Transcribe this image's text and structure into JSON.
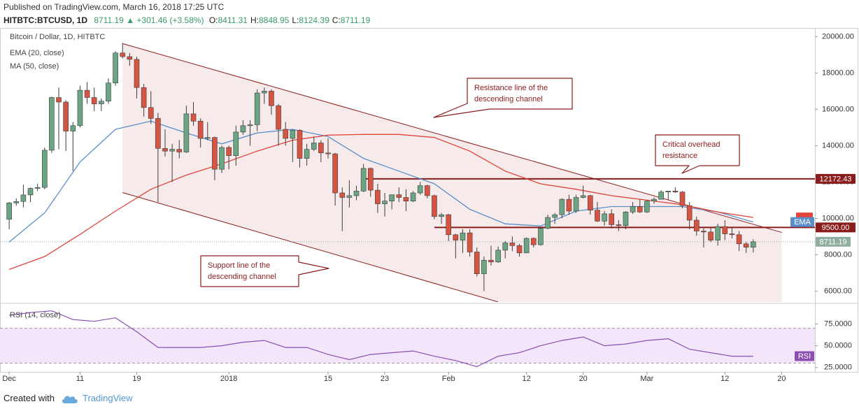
{
  "header": {
    "published": "Published on TradingView.com, March 16, 2018 17:25 UTC",
    "symbol": "HITBTC:BTCUSD, 1D",
    "last": "8711.19",
    "change": "▲ +301.46 (+3.58%)",
    "ohlc": [
      {
        "label": "O:",
        "value": "8411.31"
      },
      {
        "label": "H:",
        "value": "8848.95"
      },
      {
        "label": "L:",
        "value": "8124.39"
      },
      {
        "label": "C:",
        "value": "8711.19"
      }
    ]
  },
  "chart_data": [
    {
      "type": "candlestick",
      "title": "Bitcoin / Dollar, 1D, HITBTC",
      "up_color": "#6ba583",
      "down_color": "#d75442",
      "wick_color": "#3d3d3d",
      "x": [
        "2017-12-01",
        "2017-12-02",
        "2017-12-03",
        "2017-12-04",
        "2017-12-05",
        "2017-12-06",
        "2017-12-07",
        "2017-12-08",
        "2017-12-09",
        "2017-12-10",
        "2017-12-11",
        "2017-12-12",
        "2017-12-13",
        "2017-12-14",
        "2017-12-15",
        "2017-12-16",
        "2017-12-17",
        "2017-12-18",
        "2017-12-19",
        "2017-12-20",
        "2017-12-21",
        "2017-12-22",
        "2017-12-23",
        "2017-12-24",
        "2017-12-25",
        "2017-12-26",
        "2017-12-27",
        "2017-12-28",
        "2017-12-29",
        "2017-12-30",
        "2017-12-31",
        "2018-01-01",
        "2018-01-02",
        "2018-01-03",
        "2018-01-04",
        "2018-01-05",
        "2018-01-06",
        "2018-01-07",
        "2018-01-08",
        "2018-01-09",
        "2018-01-10",
        "2018-01-11",
        "2018-01-12",
        "2018-01-13",
        "2018-01-14",
        "2018-01-15",
        "2018-01-16",
        "2018-01-17",
        "2018-01-18",
        "2018-01-19",
        "2018-01-20",
        "2018-01-21",
        "2018-01-22",
        "2018-01-23",
        "2018-01-24",
        "2018-01-25",
        "2018-01-26",
        "2018-01-27",
        "2018-01-28",
        "2018-01-29",
        "2018-01-30",
        "2018-01-31",
        "2018-02-01",
        "2018-02-02",
        "2018-02-03",
        "2018-02-04",
        "2018-02-05",
        "2018-02-06",
        "2018-02-07",
        "2018-02-08",
        "2018-02-09",
        "2018-02-10",
        "2018-02-11",
        "2018-02-12",
        "2018-02-13",
        "2018-02-14",
        "2018-02-15",
        "2018-02-16",
        "2018-02-17",
        "2018-02-18",
        "2018-02-19",
        "2018-02-20",
        "2018-02-21",
        "2018-02-22",
        "2018-02-23",
        "2018-02-24",
        "2018-02-25",
        "2018-02-26",
        "2018-02-27",
        "2018-02-28",
        "2018-03-01",
        "2018-03-02",
        "2018-03-03",
        "2018-03-04",
        "2018-03-05",
        "2018-03-06",
        "2018-03-07",
        "2018-03-08",
        "2018-03-09",
        "2018-03-10",
        "2018-03-11",
        "2018-03-12",
        "2018-03-13",
        "2018-03-14",
        "2018-03-15",
        "2018-03-16"
      ],
      "ohlc": [
        [
          9950,
          10900,
          9400,
          10850
        ],
        [
          10850,
          11100,
          10700,
          10930
        ],
        [
          10930,
          11850,
          10600,
          11290
        ],
        [
          11290,
          11700,
          10900,
          11650
        ],
        [
          11650,
          11900,
          11500,
          11700
        ],
        [
          11700,
          13900,
          11600,
          13750
        ],
        [
          13750,
          16700,
          13600,
          16650
        ],
        [
          16650,
          17200,
          13800,
          16400
        ],
        [
          16400,
          16500,
          13700,
          14800
        ],
        [
          14800,
          15300,
          12600,
          15100
        ],
        [
          15100,
          17300,
          15000,
          17050
        ],
        [
          17050,
          17500,
          16300,
          16650
        ],
        [
          16650,
          17200,
          15900,
          16300
        ],
        [
          16300,
          16600,
          15900,
          16450
        ],
        [
          16450,
          17700,
          16300,
          17450
        ],
        [
          17450,
          19200,
          17300,
          19100
        ],
        [
          19100,
          19650,
          18800,
          18900
        ],
        [
          18900,
          19100,
          18400,
          18750
        ],
        [
          18750,
          18900,
          16600,
          17200
        ],
        [
          17200,
          17400,
          15600,
          16100
        ],
        [
          16100,
          17000,
          15200,
          15500
        ],
        [
          15500,
          15800,
          10900,
          13850
        ],
        [
          13850,
          14900,
          13400,
          13700
        ],
        [
          13700,
          14100,
          12000,
          13800
        ],
        [
          13800,
          14300,
          13300,
          13650
        ],
        [
          13650,
          16200,
          13600,
          15750
        ],
        [
          15750,
          16400,
          15100,
          15350
        ],
        [
          15350,
          15500,
          13900,
          14400
        ],
        [
          14400,
          15300,
          14300,
          14450
        ],
        [
          14450,
          14500,
          12100,
          12700
        ],
        [
          12700,
          14000,
          12500,
          13900
        ],
        [
          13900,
          14000,
          12700,
          13450
        ],
        [
          13450,
          15100,
          12900,
          14750
        ],
        [
          14750,
          15400,
          14600,
          15100
        ],
        [
          15100,
          15400,
          14000,
          15150
        ],
        [
          15150,
          17100,
          14800,
          16900
        ],
        [
          16900,
          17200,
          16300,
          17000
        ],
        [
          17000,
          17100,
          15700,
          16200
        ],
        [
          16200,
          16300,
          14000,
          14900
        ],
        [
          14900,
          15300,
          14000,
          14400
        ],
        [
          14400,
          14900,
          13100,
          14850
        ],
        [
          14850,
          14900,
          12800,
          13300
        ],
        [
          13300,
          14100,
          12900,
          13800
        ],
        [
          13800,
          14500,
          13700,
          14150
        ],
        [
          14150,
          14300,
          13100,
          13600
        ],
        [
          13600,
          14400,
          13300,
          13550
        ],
        [
          13550,
          13600,
          10700,
          11400
        ],
        [
          11400,
          11700,
          9300,
          11150
        ],
        [
          11150,
          12100,
          10600,
          11250
        ],
        [
          11250,
          11800,
          11000,
          11500
        ],
        [
          11500,
          13000,
          11450,
          12750
        ],
        [
          12750,
          12800,
          11200,
          11550
        ],
        [
          11550,
          11900,
          10300,
          10800
        ],
        [
          10800,
          11400,
          10100,
          10950
        ],
        [
          10950,
          11300,
          10500,
          11300
        ],
        [
          11300,
          11700,
          10900,
          11150
        ],
        [
          11150,
          11600,
          10400,
          10950
        ],
        [
          10950,
          11500,
          10900,
          11400
        ],
        [
          11400,
          12000,
          11300,
          11800
        ],
        [
          11800,
          11850,
          11100,
          11250
        ],
        [
          11250,
          11300,
          9950,
          10100
        ],
        [
          10100,
          10300,
          9700,
          10200
        ],
        [
          10200,
          10250,
          8750,
          9100
        ],
        [
          9100,
          9150,
          7800,
          8800
        ],
        [
          8800,
          9400,
          8100,
          9200
        ],
        [
          9200,
          9400,
          7900,
          8150
        ],
        [
          8150,
          8400,
          6800,
          6950
        ],
        [
          6950,
          7900,
          6000,
          7700
        ],
        [
          7700,
          8500,
          7400,
          7600
        ],
        [
          7600,
          8450,
          7550,
          8250
        ],
        [
          8250,
          8750,
          7800,
          8650
        ],
        [
          8650,
          9000,
          8200,
          8500
        ],
        [
          8500,
          8600,
          7900,
          8100
        ],
        [
          8100,
          8950,
          8100,
          8900
        ],
        [
          8900,
          8950,
          8400,
          8550
        ],
        [
          8550,
          9500,
          8500,
          9450
        ],
        [
          9450,
          10200,
          9400,
          10050
        ],
        [
          10050,
          10300,
          9700,
          10200
        ],
        [
          10200,
          11100,
          10000,
          11050
        ],
        [
          11050,
          11300,
          10200,
          10400
        ],
        [
          10400,
          11300,
          10300,
          11150
        ],
        [
          11150,
          11800,
          11100,
          11250
        ],
        [
          11250,
          11300,
          10200,
          10450
        ],
        [
          10450,
          10900,
          9800,
          9850
        ],
        [
          9850,
          10400,
          9600,
          10250
        ],
        [
          10250,
          10500,
          9450,
          9650
        ],
        [
          9650,
          9900,
          9300,
          9600
        ],
        [
          9600,
          10400,
          9400,
          10350
        ],
        [
          10350,
          10900,
          10250,
          10650
        ],
        [
          10650,
          11050,
          10300,
          10350
        ],
        [
          10350,
          11000,
          10300,
          10950
        ],
        [
          10950,
          11150,
          10800,
          11050
        ],
        [
          11050,
          11550,
          11050,
          11450
        ],
        [
          11450,
          11500,
          11000,
          11500
        ],
        [
          11500,
          11700,
          11400,
          11450
        ],
        [
          11450,
          11500,
          10550,
          10700
        ],
        [
          10700,
          10900,
          9400,
          9900
        ],
        [
          9900,
          10100,
          9050,
          9300
        ],
        [
          9300,
          9450,
          8400,
          9250
        ],
        [
          9250,
          9500,
          8700,
          8800
        ],
        [
          8800,
          9700,
          8500,
          9550
        ],
        [
          9550,
          9900,
          8800,
          9150
        ],
        [
          9150,
          9500,
          8900,
          9100
        ],
        [
          9100,
          9300,
          8200,
          8600
        ],
        [
          8600,
          8700,
          8100,
          8410
        ],
        [
          8411.31,
          8848.95,
          8124.39,
          8711.19
        ]
      ],
      "lines": [
        {
          "name": "EMA (20, close)",
          "color": "#5b8fc9",
          "tag": "EMA",
          "x": [
            "2017-12-01",
            "2017-12-06",
            "2017-12-11",
            "2017-12-16",
            "2017-12-21",
            "2017-12-26",
            "2017-12-31",
            "2018-01-05",
            "2018-01-10",
            "2018-01-15",
            "2018-01-20",
            "2018-01-25",
            "2018-01-30",
            "2018-02-04",
            "2018-02-09",
            "2018-02-14",
            "2018-02-19",
            "2018-02-24",
            "2018-03-01",
            "2018-03-06",
            "2018-03-11",
            "2018-03-16"
          ],
          "values": [
            8700,
            10300,
            13100,
            14900,
            15350,
            14700,
            14100,
            14700,
            14900,
            14500,
            13300,
            12600,
            11900,
            10500,
            9700,
            9580,
            10400,
            10650,
            10650,
            10650,
            10350,
            9800
          ]
        },
        {
          "name": "MA (50, close)",
          "color": "#e0443a",
          "x": [
            "2017-12-01",
            "2017-12-06",
            "2017-12-11",
            "2017-12-16",
            "2017-12-21",
            "2017-12-26",
            "2017-12-31",
            "2018-01-05",
            "2018-01-10",
            "2018-01-15",
            "2018-01-20",
            "2018-01-25",
            "2018-01-30",
            "2018-02-04",
            "2018-02-09",
            "2018-02-14",
            "2018-02-19",
            "2018-02-24",
            "2018-03-01",
            "2018-03-06",
            "2018-03-11",
            "2018-03-16"
          ],
          "values": [
            7190,
            7900,
            9120,
            10400,
            11600,
            12380,
            13000,
            13700,
            14300,
            14580,
            14620,
            14620,
            14450,
            13700,
            12600,
            11900,
            11600,
            11250,
            11000,
            10750,
            10350,
            10050
          ]
        }
      ],
      "ylim": [
        5400,
        20400
      ],
      "yticks": [
        {
          "value": 6000,
          "label": "6000.00"
        },
        {
          "value": 8000,
          "label": "8000.00"
        },
        {
          "value": 10000,
          "label": "10000.00"
        },
        {
          "value": 12000,
          "label": "12000.00"
        },
        {
          "value": 14000,
          "label": "14000.00"
        },
        {
          "value": 16000,
          "label": "16000.00"
        },
        {
          "value": 18000,
          "label": "18000.00"
        },
        {
          "value": 20000,
          "label": "20000.00"
        }
      ],
      "xlim": [
        "2017-11-30",
        "2018-03-25"
      ],
      "xticks": [
        {
          "value": "2017-12-01",
          "label": "Dec"
        },
        {
          "value": "2017-12-11",
          "label": "11"
        },
        {
          "value": "2017-12-19",
          "label": "19"
        },
        {
          "value": "2018-01-01",
          "label": "2018"
        },
        {
          "value": "2018-01-15",
          "label": "15"
        },
        {
          "value": "2018-01-23",
          "label": "23"
        },
        {
          "value": "2018-02-01",
          "label": "Feb"
        },
        {
          "value": "2018-02-12",
          "label": "12"
        },
        {
          "value": "2018-02-20",
          "label": "20"
        },
        {
          "value": "2018-03-01",
          "label": "Mar"
        },
        {
          "value": "2018-03-12",
          "label": "12"
        },
        {
          "value": "2018-03-20",
          "label": "20"
        }
      ],
      "hlines": [
        {
          "value": 12172.43,
          "label": "12172.43",
          "from": "2018-01-20",
          "color": "#8b1c1c"
        },
        {
          "value": 9500,
          "label": "9500.00",
          "from": "2018-01-30",
          "color": "#8b1c1c"
        }
      ],
      "last_price": {
        "value": 8711.19,
        "label": "8711.19",
        "color": "#8fae9f"
      },
      "channel": {
        "color": "#8b1c1c",
        "fill": "#f6eaea",
        "upper": [
          {
            "x": "2017-12-17",
            "y": 19615
          },
          {
            "x": "2018-03-20",
            "y": 9230
          }
        ],
        "lower": [
          {
            "x": "2017-12-17",
            "y": 11420
          },
          {
            "x": "2018-02-08",
            "y": 5400
          }
        ]
      },
      "annotations": [
        {
          "lines": [
            "Resistance line of the",
            "descending channel"
          ]
        },
        {
          "lines": [
            "Critical overhead",
            "resistance"
          ]
        },
        {
          "lines": [
            "Support line of the",
            "descending channel"
          ]
        }
      ]
    },
    {
      "type": "line",
      "title": "RSI (14, close)",
      "color": "#8a4fb0",
      "tag": "RSI",
      "band": [
        30,
        70
      ],
      "band_color": "#f3e6fb",
      "x": [
        "2017-12-01",
        "2017-12-04",
        "2017-12-07",
        "2017-12-10",
        "2017-12-13",
        "2017-12-16",
        "2017-12-19",
        "2017-12-22",
        "2017-12-25",
        "2017-12-28",
        "2017-12-31",
        "2018-01-03",
        "2018-01-06",
        "2018-01-09",
        "2018-01-12",
        "2018-01-15",
        "2018-01-18",
        "2018-01-21",
        "2018-01-24",
        "2018-01-27",
        "2018-01-30",
        "2018-02-02",
        "2018-02-05",
        "2018-02-08",
        "2018-02-11",
        "2018-02-14",
        "2018-02-17",
        "2018-02-20",
        "2018-02-23",
        "2018-02-26",
        "2018-03-01",
        "2018-03-04",
        "2018-03-07",
        "2018-03-10",
        "2018-03-13",
        "2018-03-16"
      ],
      "values": [
        85,
        88,
        90,
        80,
        78,
        82,
        66,
        48,
        48,
        48,
        50,
        54,
        56,
        48,
        48,
        40,
        34,
        40,
        42,
        44,
        38,
        33,
        26,
        38,
        42,
        50,
        56,
        60,
        50,
        52,
        56,
        58,
        46,
        42,
        38,
        38
      ],
      "ylim": [
        20,
        97
      ],
      "yticks": [
        {
          "value": 25,
          "label": "25.0000"
        },
        {
          "value": 50,
          "label": "50.0000"
        },
        {
          "value": 75,
          "label": "75.0000"
        }
      ]
    }
  ],
  "footer": {
    "created": "Created with",
    "brand": "TradingView"
  }
}
